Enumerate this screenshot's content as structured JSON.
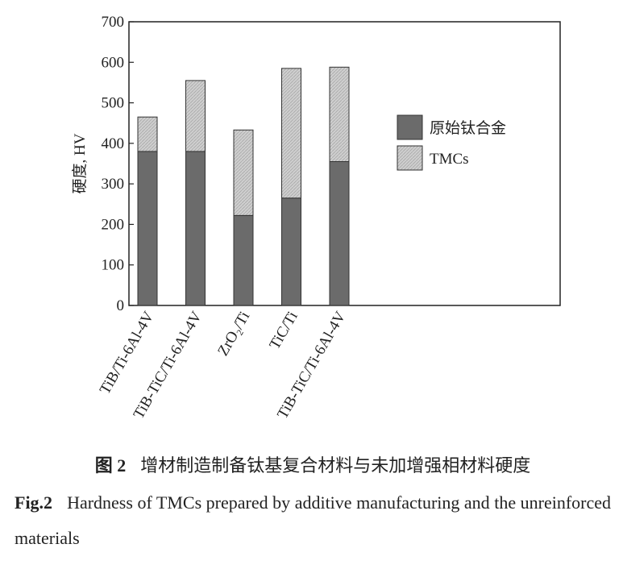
{
  "chart_data": {
    "type": "stacked_bar",
    "y_label": "硬度, HV",
    "categories": [
      "TiB/Ti-6Al-4V",
      "TiB-TiC/Ti-6Al-4V",
      "ZrO₂/Ti",
      "TiC/Ti",
      "TiB-TiC/Ti-6Al-4V"
    ],
    "series": [
      {
        "name": "原始钛合金",
        "color": "#6b6b6b",
        "values": [
          380,
          380,
          222,
          265,
          355
        ]
      },
      {
        "name": "TMCs",
        "color": "#cfcfcf",
        "values": [
          85,
          175,
          211,
          320,
          233
        ]
      }
    ],
    "ylim": [
      0,
      700
    ],
    "yticks": [
      0,
      100,
      200,
      300,
      400,
      500,
      600,
      700
    ],
    "legend": "right"
  },
  "caption": {
    "cn_label": "图 2",
    "cn_text": "增材制造制备钛基复合材料与未加增强相材料硬度",
    "en_label": "Fig.2",
    "en_text": "Hardness of TMCs prepared by additive manufacturing and the unreinforced materials"
  }
}
